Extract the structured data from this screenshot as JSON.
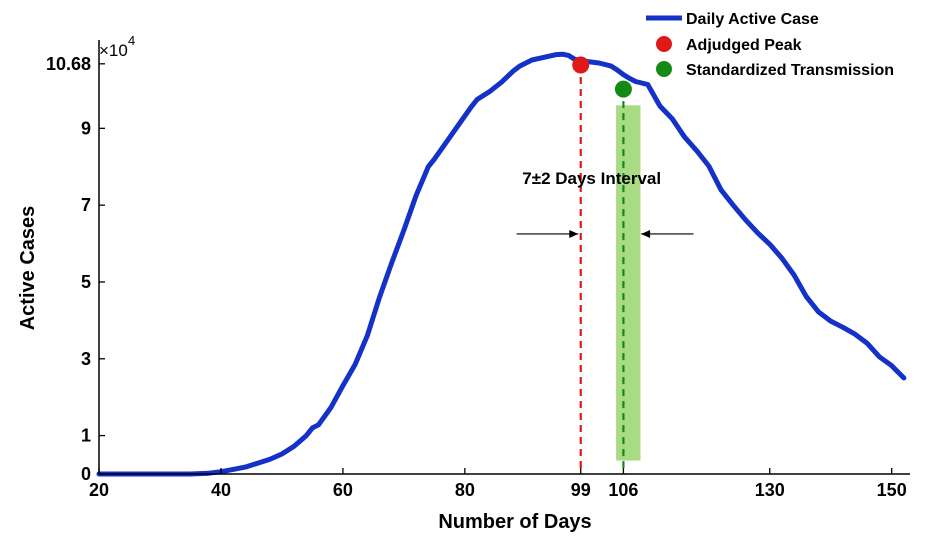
{
  "chart_data": {
    "type": "line",
    "xlabel": "Number of Days",
    "ylabel": "Active Cases",
    "y_exponent_label": "×10",
    "y_exponent_power": "4",
    "xlim": [
      20,
      153
    ],
    "ylim": [
      0,
      11.3
    ],
    "x_ticks": [
      20,
      40,
      60,
      80,
      99,
      106,
      130,
      150
    ],
    "y_ticks": [
      0,
      1,
      3,
      5,
      7,
      9,
      10.68
    ],
    "x_tick_labels": [
      "20",
      "40",
      "60",
      "80",
      "99",
      "106",
      "130",
      "150"
    ],
    "y_tick_labels": [
      "0",
      "1",
      "3",
      "5",
      "7",
      "9",
      "10.68"
    ],
    "grid": false,
    "legend_position": "top-right",
    "series": [
      {
        "name": "Daily Active Case",
        "color": "#1432c8",
        "x": [
          20,
          25,
          30,
          35,
          38,
          40,
          42,
          44,
          46,
          48,
          50,
          52,
          54,
          55,
          56,
          58,
          60,
          62,
          64,
          66,
          68,
          70,
          72,
          74,
          75,
          77,
          79,
          81,
          82,
          84,
          86,
          88,
          89,
          91,
          93,
          95,
          96,
          97,
          98,
          99,
          100,
          102,
          104,
          105,
          106,
          107,
          108,
          109,
          110,
          112,
          114,
          116,
          118,
          120,
          122,
          124,
          126,
          128,
          130,
          132,
          134,
          136,
          138,
          140,
          142,
          144,
          146,
          148,
          150,
          152
        ],
        "y": [
          0,
          0,
          0,
          0,
          0.02,
          0.06,
          0.12,
          0.18,
          0.28,
          0.38,
          0.52,
          0.72,
          1.0,
          1.2,
          1.28,
          1.72,
          2.3,
          2.85,
          3.6,
          4.6,
          5.5,
          6.35,
          7.25,
          8.0,
          8.2,
          8.65,
          9.1,
          9.55,
          9.75,
          9.95,
          10.2,
          10.5,
          10.62,
          10.78,
          10.85,
          10.92,
          10.93,
          10.9,
          10.8,
          10.76,
          10.74,
          10.7,
          10.62,
          10.52,
          10.4,
          10.3,
          10.22,
          10.18,
          10.14,
          9.58,
          9.25,
          8.78,
          8.42,
          8.02,
          7.4,
          7.0,
          6.62,
          6.28,
          5.98,
          5.62,
          5.18,
          4.62,
          4.22,
          3.98,
          3.82,
          3.64,
          3.4,
          3.05,
          2.82,
          2.5
        ]
      }
    ],
    "points": [
      {
        "name": "Adjudged Peak",
        "x": 99,
        "y": 10.65,
        "color": "#e01818"
      },
      {
        "name": "Standardized Transmission",
        "x": 106,
        "y": 10.02,
        "color": "#138a13"
      }
    ],
    "vertical_lines": [
      {
        "x": 99,
        "color": "#e01818",
        "y_top": 10.65
      },
      {
        "x": 106,
        "color": "#138a13",
        "y_top": 10.02
      }
    ],
    "band": {
      "x0": 104.8,
      "x1": 108.8,
      "y0": 0.35,
      "y1": 9.6,
      "color": "#a8db84"
    },
    "annotation": {
      "text": "7±2 Days Interval",
      "x": 100.8,
      "y": 7.55
    },
    "arrows": [
      {
        "from_x": 88.5,
        "to_x": 98.6,
        "y": 6.25
      },
      {
        "from_x": 117.5,
        "to_x": 108.9,
        "y": 6.25
      }
    ]
  }
}
